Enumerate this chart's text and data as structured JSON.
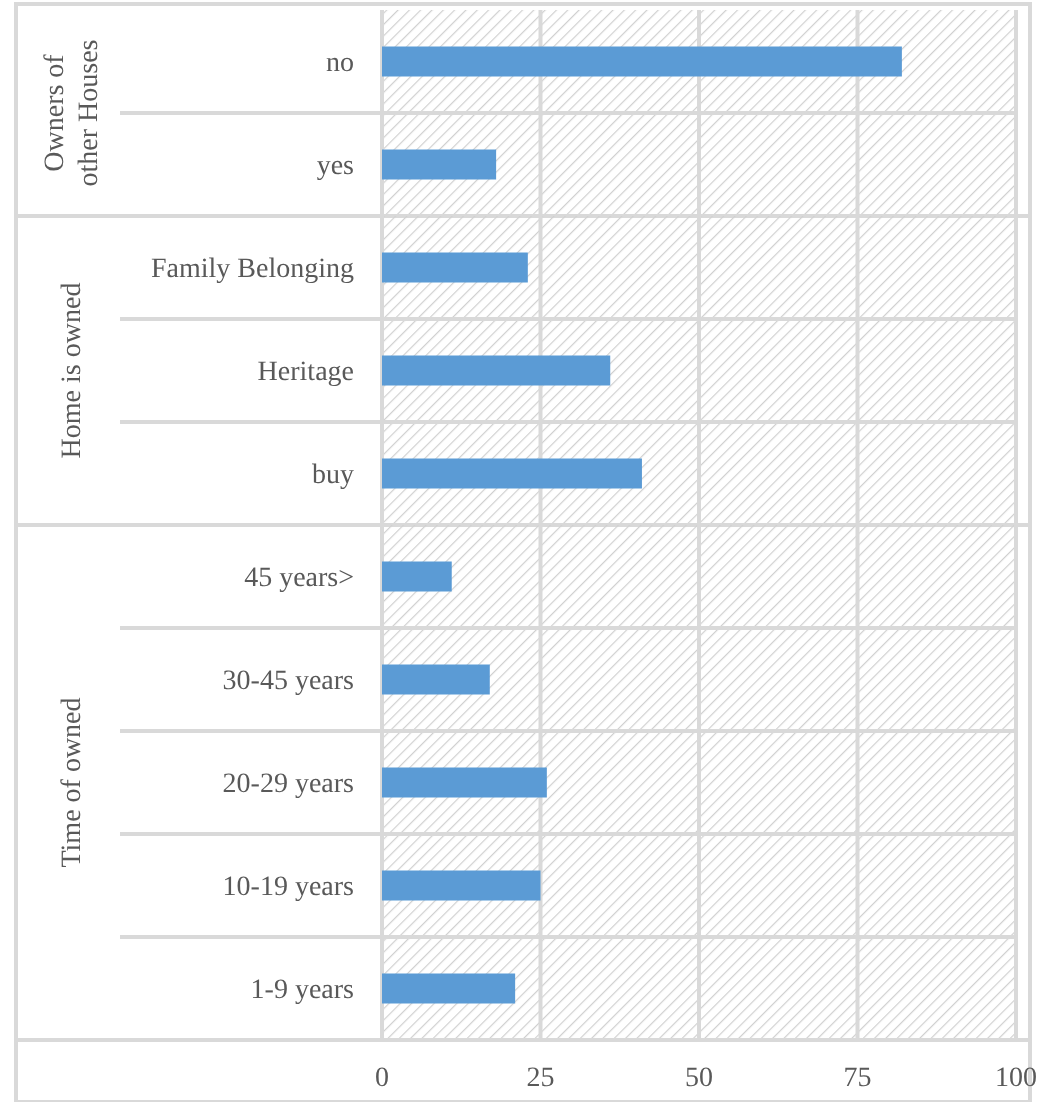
{
  "chart_data": [
    {
      "type": "bar",
      "orientation": "horizontal",
      "ylabel": "Owners of other Houses",
      "categories": [
        "no",
        "yes"
      ],
      "values": [
        82,
        18
      ],
      "color": "#5b9bd5",
      "xlim": [
        0,
        100
      ],
      "xticks": [
        0,
        25,
        50,
        75,
        100
      ],
      "grid": "x",
      "tick_labels": "y"
    },
    {
      "type": "bar",
      "orientation": "horizontal",
      "ylabel": "Home is owned",
      "categories": [
        "Family Belonging",
        "Heritage",
        "buy"
      ],
      "values": [
        23,
        36,
        41
      ],
      "color": "#5b9bd5",
      "xlim": [
        0,
        100
      ],
      "xticks": [
        0,
        25,
        50,
        75,
        100
      ],
      "grid": "x",
      "tick_labels": "y"
    },
    {
      "type": "bar",
      "orientation": "horizontal",
      "ylabel": "Time of owned",
      "categories": [
        "45 years>",
        "30-45 years",
        "20-29 years",
        "10-19 years",
        "1-9 years"
      ],
      "values": [
        11,
        17,
        26,
        25,
        21
      ],
      "color": "#5b9bd5",
      "xlim": [
        0,
        100
      ],
      "xticks": [
        0,
        25,
        50,
        75,
        100
      ],
      "grid": "x"
    }
  ]
}
